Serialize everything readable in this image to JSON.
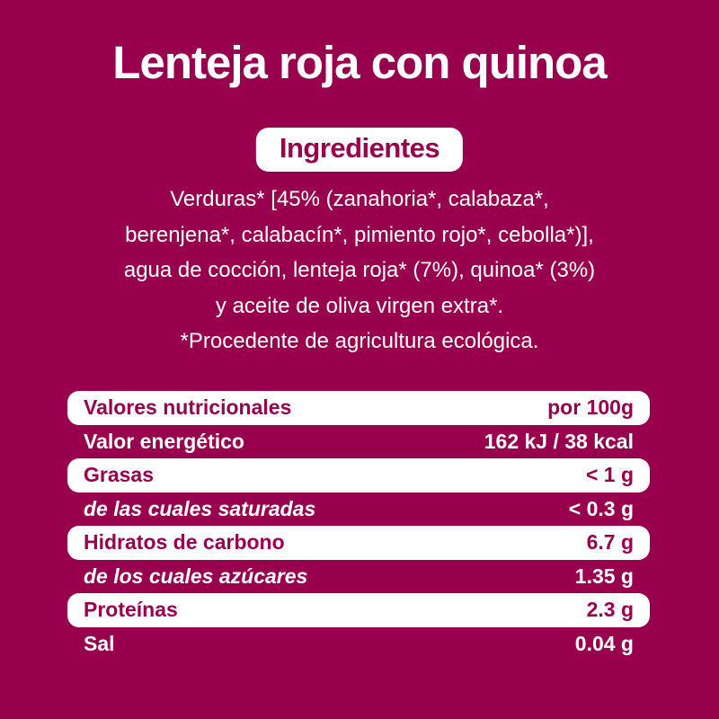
{
  "page": {
    "bg_color": "#98004E",
    "accent_white": "#FFFFFF",
    "title": "Lenteja roja con quinoa"
  },
  "ingredients": {
    "badge_label": "Ingredientes",
    "lines": [
      "Verduras* [45% (zanahoria*, calabaza*,",
      "berenjena*, calabacín*, pimiento rojo*, cebolla*)],",
      "agua de cocción, lenteja roja* (7%), quinoa* (3%)",
      "y aceite de oliva virgen extra*.",
      "*Procedente de agricultura ecológica."
    ]
  },
  "nutrition_table": {
    "header": {
      "label": "Valores nutricionales",
      "value": "por 100g"
    },
    "rows": [
      {
        "label": "Valor energético",
        "value": "162 kJ / 38 kcal"
      },
      {
        "label": "Grasas",
        "value": "< 1 g"
      },
      {
        "label": "de las cuales saturadas",
        "value": "< 0.3 g"
      },
      {
        "label": "Hidratos de carbono",
        "value": "6.7 g"
      },
      {
        "label": "de los cuales azúcares",
        "value": "1.35 g"
      },
      {
        "label": "Proteínas",
        "value": "2.3 g"
      },
      {
        "label": "Sal",
        "value": "0.04 g"
      }
    ]
  }
}
